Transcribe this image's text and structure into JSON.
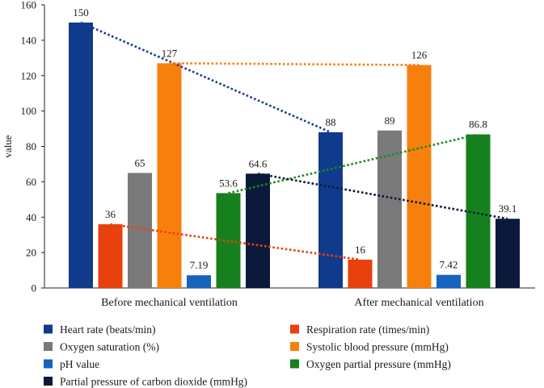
{
  "chart_data": {
    "type": "bar",
    "title": "",
    "xlabel": "",
    "ylabel": "value",
    "ylim": [
      0,
      160
    ],
    "yticks": [
      0,
      20,
      40,
      60,
      80,
      100,
      120,
      140,
      160
    ],
    "categories": [
      "Before mechanical ventilation",
      "After mechanical ventilation"
    ],
    "series": [
      {
        "name": "Heart rate (beats/min)",
        "color": "#103a8c",
        "values": [
          150,
          88
        ],
        "labels": [
          "150",
          "88"
        ]
      },
      {
        "name": "Respiration rate (times/min)",
        "color": "#e8410e",
        "values": [
          36,
          16
        ],
        "labels": [
          "36",
          "16"
        ]
      },
      {
        "name": "Oxygen saturation (%)",
        "color": "#7a7a7a",
        "values": [
          65,
          89
        ],
        "labels": [
          "65",
          "89"
        ]
      },
      {
        "name": "Systolic blood pressure (mmHg)",
        "color": "#f7800d",
        "values": [
          127,
          126
        ],
        "labels": [
          "127",
          "126"
        ]
      },
      {
        "name": "pH value",
        "color": "#1763c0",
        "values": [
          7.19,
          7.42
        ],
        "labels": [
          "7.19",
          "7.42"
        ]
      },
      {
        "name": "Oxygen partial pressure (mmHg)",
        "color": "#16801f",
        "values": [
          53.6,
          86.8
        ],
        "labels": [
          "53.6",
          "86.8"
        ]
      },
      {
        "name": "Partial pressure of carbon dioxide (mmHg)",
        "color": "#0b1a3a",
        "values": [
          64.6,
          39.1
        ],
        "labels": [
          "64.6",
          "39.1"
        ]
      }
    ],
    "trend_lines": [
      {
        "series": "Heart rate (beats/min)",
        "color": "#1b3d8f",
        "from": 150,
        "to": 88
      },
      {
        "series": "Systolic blood pressure (mmHg)",
        "color": "#f7800d",
        "from": 127,
        "to": 126
      },
      {
        "series": "Oxygen partial pressure (mmHg)",
        "color": "#1e8a1e",
        "from": 53.6,
        "to": 86.8
      },
      {
        "series": "Partial pressure of carbon dioxide (mmHg)",
        "color": "#0b1a3a",
        "from": 64.6,
        "to": 39.1
      },
      {
        "series": "Respiration rate (times/min)",
        "color": "#e8410e",
        "from": 36,
        "to": 16
      }
    ],
    "legend_position": "bottom",
    "grid": false
  }
}
